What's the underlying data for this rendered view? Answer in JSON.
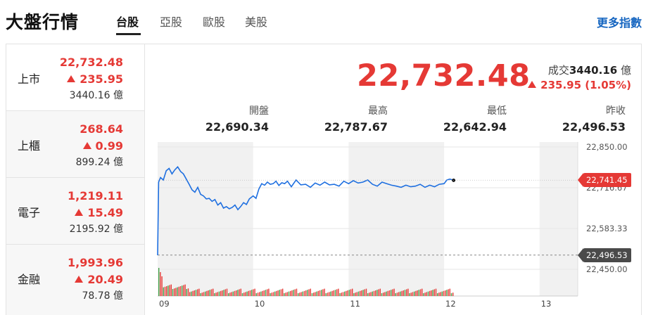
{
  "header": {
    "title": "大盤行情",
    "tabs": [
      {
        "label": "台股",
        "active": true
      },
      {
        "label": "亞股",
        "active": false
      },
      {
        "label": "歐股",
        "active": false
      },
      {
        "label": "美股",
        "active": false
      }
    ],
    "more_link": "更多指數"
  },
  "sidebar": {
    "items": [
      {
        "name": "上市",
        "price": "22,732.48",
        "change": "235.95",
        "volume": "3440.16 億",
        "direction": "up"
      },
      {
        "name": "上櫃",
        "price": "268.64",
        "change": "0.99",
        "volume": "899.24 億",
        "direction": "up"
      },
      {
        "name": "電子",
        "price": "1,219.11",
        "change": "15.49",
        "volume": "2195.92 億",
        "direction": "up"
      },
      {
        "name": "金融",
        "price": "1,993.96",
        "change": "20.49",
        "volume": "78.78 億",
        "direction": "up"
      }
    ]
  },
  "quote": {
    "price": "22,732.48",
    "volume_label": "成交",
    "volume_value": "3440.16",
    "volume_unit": "億",
    "change": "235.95 (1.05%)",
    "stats": [
      {
        "label": "開盤",
        "value": "22,690.34"
      },
      {
        "label": "最高",
        "value": "22,787.67"
      },
      {
        "label": "最低",
        "value": "22,642.94"
      },
      {
        "label": "昨收",
        "value": "22,496.53"
      }
    ]
  },
  "colors": {
    "up": "#e53935",
    "line": "#1e6fe0",
    "link": "#1565c0",
    "shade": "#f1f1f1"
  },
  "chart_data": {
    "type": "line",
    "x_ticks": [
      "09",
      "10",
      "11",
      "12",
      "13"
    ],
    "y_ticks": [
      "22,850.00",
      "22,716.67",
      "22,583.33",
      "22,450.00"
    ],
    "ylim": [
      22450,
      22850
    ],
    "reference_line": {
      "label": "22,496.53",
      "value": 22496.53
    },
    "current_tag": {
      "label": "22,741.45",
      "value": 22741.45
    },
    "series": [
      {
        "x": [
          9.0,
          9.01,
          9.03,
          9.06,
          9.09,
          9.12,
          9.15,
          9.18,
          9.21,
          9.24,
          9.27,
          9.3,
          9.33,
          9.36,
          9.39,
          9.42,
          9.45,
          9.48,
          9.51,
          9.54,
          9.57,
          9.6,
          9.63,
          9.66,
          9.69,
          9.72,
          9.75,
          9.78,
          9.81,
          9.84,
          9.87,
          9.9,
          9.93,
          9.96,
          10.0,
          10.03,
          10.06,
          10.09,
          10.12,
          10.15,
          10.18,
          10.21,
          10.24,
          10.27,
          10.3,
          10.33,
          10.36,
          10.4,
          10.45,
          10.5,
          10.55,
          10.6,
          10.65,
          10.7,
          10.75,
          10.8,
          10.85,
          10.9,
          10.95,
          11.0,
          11.05,
          11.1,
          11.15,
          11.2,
          11.25,
          11.3,
          11.35,
          11.4,
          11.45,
          11.5,
          11.55,
          11.6,
          11.65,
          11.7,
          11.75,
          11.8,
          11.85,
          11.9,
          11.95,
          12.0,
          12.03,
          12.06,
          12.1
        ],
        "values": [
          22496,
          22735,
          22750,
          22742,
          22772,
          22780,
          22762,
          22775,
          22785,
          22770,
          22762,
          22745,
          22728,
          22710,
          22702,
          22718,
          22695,
          22690,
          22680,
          22682,
          22672,
          22678,
          22660,
          22668,
          22650,
          22655,
          22648,
          22652,
          22660,
          22645,
          22655,
          22668,
          22662,
          22680,
          22690,
          22682,
          22712,
          22730,
          22725,
          22735,
          22728,
          22730,
          22738,
          22724,
          22733,
          22730,
          22738,
          22720,
          22742,
          22726,
          22728,
          22718,
          22732,
          22725,
          22735,
          22726,
          22728,
          22722,
          22738,
          22730,
          22740,
          22732,
          22735,
          22742,
          22728,
          22722,
          22735,
          22730,
          22725,
          22722,
          22718,
          22725,
          22720,
          22722,
          22728,
          22718,
          22725,
          22720,
          22728,
          22730,
          22742,
          22745,
          22741
        ]
      }
    ]
  }
}
